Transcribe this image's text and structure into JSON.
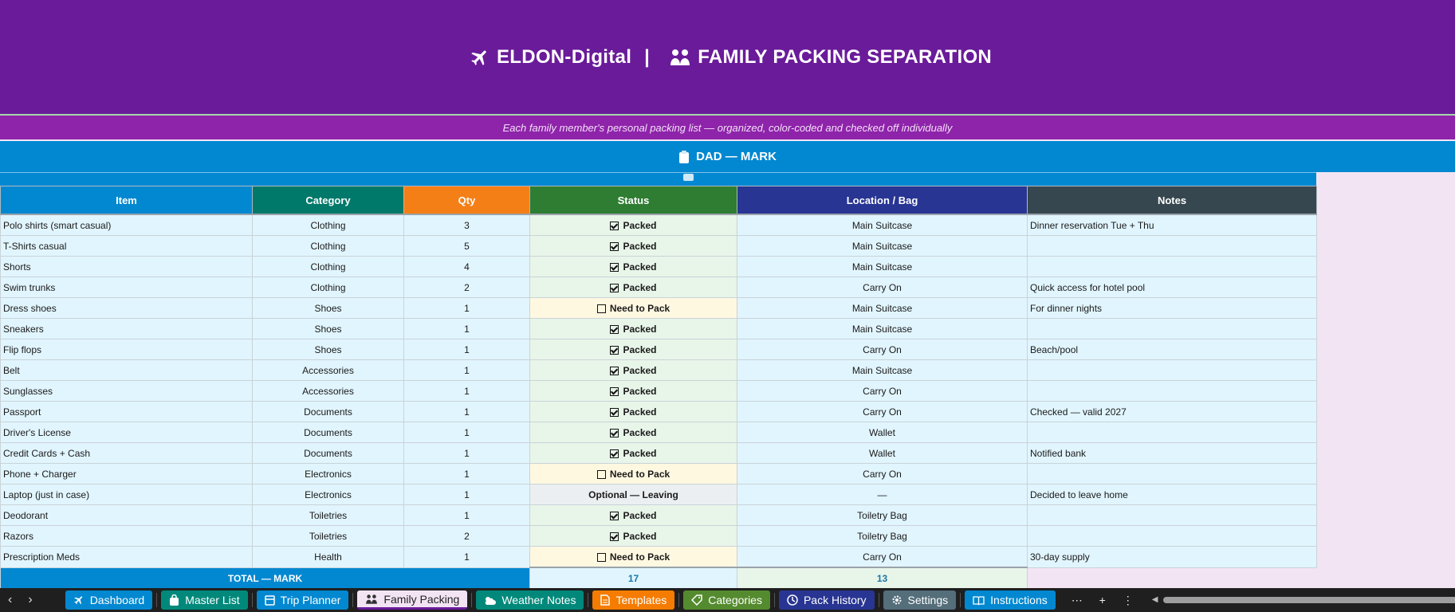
{
  "header": {
    "brand": "ELDON-Digital",
    "divider": "|",
    "title": "FAMILY PACKING SEPARATION",
    "subtitle": "Each family member's personal packing list — organized, color-coded and checked off individually"
  },
  "section": {
    "title": "DAD — MARK"
  },
  "columns": [
    {
      "label": "Item",
      "color": "#0288d1"
    },
    {
      "label": "Category",
      "color": "#00796b"
    },
    {
      "label": "Qty",
      "color": "#f57f17"
    },
    {
      "label": "Status",
      "color": "#2e7d32"
    },
    {
      "label": "Location / Bag",
      "color": "#283593"
    },
    {
      "label": "Notes",
      "color": "#37474f"
    }
  ],
  "rows": [
    {
      "item": "Polo shirts (smart casual)",
      "category": "Clothing",
      "qty": "3",
      "status": "Packed",
      "state": "packed",
      "location": "Main Suitcase",
      "notes": "Dinner reservation Tue + Thu"
    },
    {
      "item": "T-Shirts casual",
      "category": "Clothing",
      "qty": "5",
      "status": "Packed",
      "state": "packed",
      "location": "Main Suitcase",
      "notes": ""
    },
    {
      "item": "Shorts",
      "category": "Clothing",
      "qty": "4",
      "status": "Packed",
      "state": "packed",
      "location": "Main Suitcase",
      "notes": ""
    },
    {
      "item": "Swim trunks",
      "category": "Clothing",
      "qty": "2",
      "status": "Packed",
      "state": "packed",
      "location": "Carry On",
      "notes": "Quick access for hotel pool"
    },
    {
      "item": "Dress shoes",
      "category": "Shoes",
      "qty": "1",
      "status": "Need to Pack",
      "state": "need",
      "location": "Main Suitcase",
      "notes": "For dinner nights"
    },
    {
      "item": "Sneakers",
      "category": "Shoes",
      "qty": "1",
      "status": "Packed",
      "state": "packed",
      "location": "Main Suitcase",
      "notes": ""
    },
    {
      "item": "Flip flops",
      "category": "Shoes",
      "qty": "1",
      "status": "Packed",
      "state": "packed",
      "location": "Carry On",
      "notes": "Beach/pool"
    },
    {
      "item": "Belt",
      "category": "Accessories",
      "qty": "1",
      "status": "Packed",
      "state": "packed",
      "location": "Main Suitcase",
      "notes": ""
    },
    {
      "item": "Sunglasses",
      "category": "Accessories",
      "qty": "1",
      "status": "Packed",
      "state": "packed",
      "location": "Carry On",
      "notes": ""
    },
    {
      "item": "Passport",
      "category": "Documents",
      "qty": "1",
      "status": "Packed",
      "state": "packed",
      "location": "Carry On",
      "notes": "Checked — valid 2027"
    },
    {
      "item": "Driver's License",
      "category": "Documents",
      "qty": "1",
      "status": "Packed",
      "state": "packed",
      "location": "Wallet",
      "notes": ""
    },
    {
      "item": "Credit Cards + Cash",
      "category": "Documents",
      "qty": "1",
      "status": "Packed",
      "state": "packed",
      "location": "Wallet",
      "notes": "Notified bank"
    },
    {
      "item": "Phone + Charger",
      "category": "Electronics",
      "qty": "1",
      "status": "Need to Pack",
      "state": "need",
      "location": "Carry On",
      "notes": ""
    },
    {
      "item": "Laptop (just in case)",
      "category": "Electronics",
      "qty": "1",
      "status": "Optional — Leaving",
      "state": "optional",
      "location": "—",
      "notes": "Decided to leave home"
    },
    {
      "item": "Deodorant",
      "category": "Toiletries",
      "qty": "1",
      "status": "Packed",
      "state": "packed",
      "location": "Toiletry Bag",
      "notes": ""
    },
    {
      "item": "Razors",
      "category": "Toiletries",
      "qty": "2",
      "status": "Packed",
      "state": "packed",
      "location": "Toiletry Bag",
      "notes": ""
    },
    {
      "item": "Prescription Meds",
      "category": "Health",
      "qty": "1",
      "status": "Need to Pack",
      "state": "need",
      "location": "Carry On",
      "notes": "30-day supply"
    }
  ],
  "total": {
    "label": "TOTAL — MARK",
    "qty_total": "17",
    "packed_total": "13"
  },
  "tabs": [
    {
      "label": "Dashboard",
      "color": "#0288d1",
      "icon": "airplane-icon"
    },
    {
      "label": "Master List",
      "color": "#00897b",
      "icon": "bag-icon"
    },
    {
      "label": "Trip Planner",
      "color": "#0288d1",
      "icon": "calendar-icon"
    },
    {
      "label": "Family Packing",
      "color": "#f3e4f3",
      "icon": "family-icon",
      "active": true
    },
    {
      "label": "Weather Notes",
      "color": "#00897b",
      "icon": "weather-icon"
    },
    {
      "label": "Templates",
      "color": "#f57c00",
      "icon": "document-icon"
    },
    {
      "label": "Categories",
      "color": "#558b2f",
      "icon": "tag-icon"
    },
    {
      "label": "Pack History",
      "color": "#283593",
      "icon": "clock-icon"
    },
    {
      "label": "Settings",
      "color": "#546e7a",
      "icon": "gear-icon"
    },
    {
      "label": "Instructions",
      "color": "#0288d1",
      "icon": "book-icon"
    }
  ],
  "tab_tools": {
    "more": "⋯",
    "add": "+",
    "menu": "⋮"
  }
}
